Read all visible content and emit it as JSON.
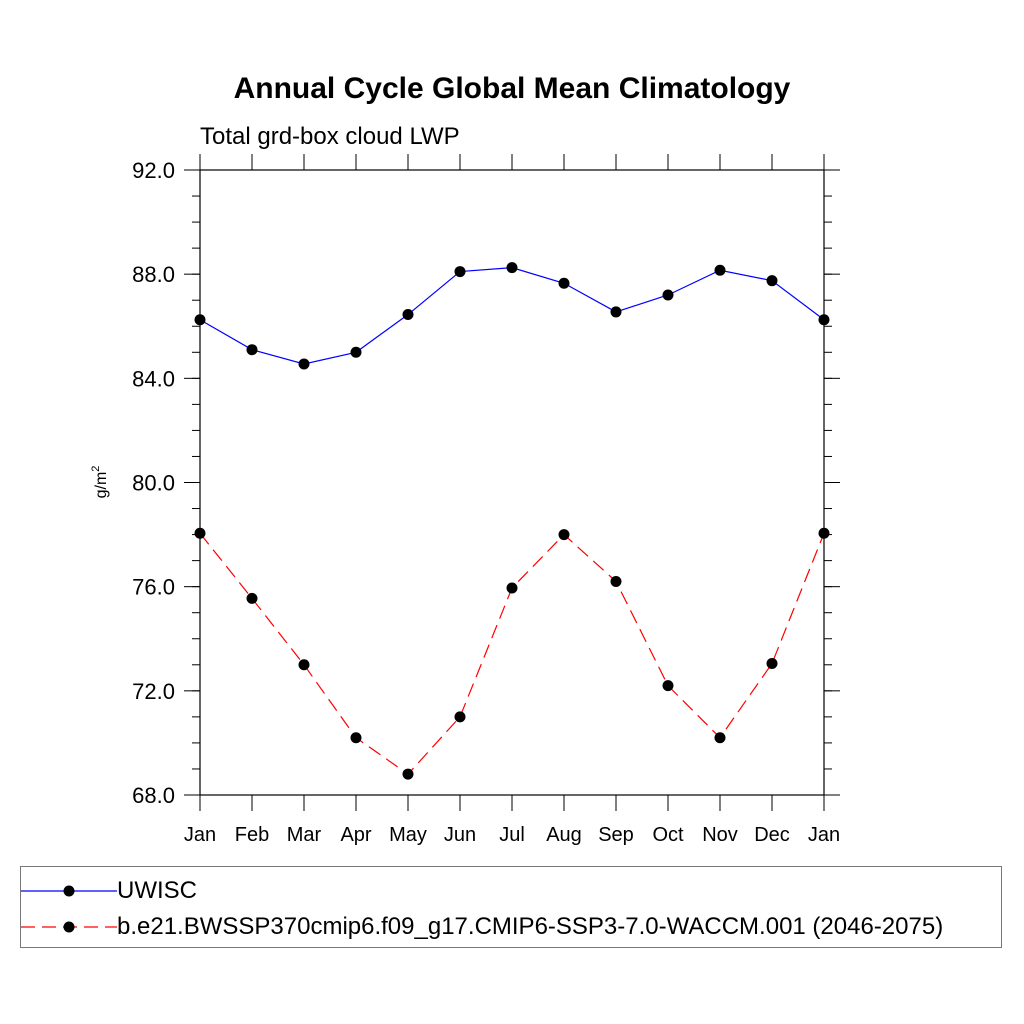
{
  "chart_data": {
    "type": "line",
    "title": "Annual Cycle Global Mean Climatology",
    "subtitle": "Total grd-box cloud LWP",
    "ylabel_base": "g/m",
    "ylabel_sup": "2",
    "xlabel": "",
    "categories": [
      "Jan",
      "Feb",
      "Mar",
      "Apr",
      "May",
      "Jun",
      "Jul",
      "Aug",
      "Sep",
      "Oct",
      "Nov",
      "Dec",
      "Jan"
    ],
    "ylim": [
      68.0,
      92.0
    ],
    "yticks": [
      68.0,
      72.0,
      76.0,
      80.0,
      84.0,
      88.0,
      92.0
    ],
    "ytick_labels": [
      "68.0",
      "72.0",
      "76.0",
      "80.0",
      "84.0",
      "88.0",
      "92.0"
    ],
    "grid": false,
    "legend_position": "bottom",
    "series": [
      {
        "name": "UWISC",
        "color": "#0000ff",
        "dash": "solid",
        "values": [
          86.25,
          85.1,
          84.55,
          85.0,
          86.45,
          88.1,
          88.25,
          87.65,
          86.55,
          87.2,
          88.15,
          87.75,
          86.25
        ]
      },
      {
        "name": "b.e21.BWSSP370cmip6.f09_g17.CMIP6-SSP3-7.0-WACCM.001 (2046-2075)",
        "color": "#ff0000",
        "dash": "dashed",
        "values": [
          78.05,
          75.55,
          73.0,
          70.2,
          68.8,
          71.0,
          75.95,
          78.0,
          76.2,
          72.2,
          70.2,
          73.05,
          78.05
        ]
      }
    ]
  }
}
